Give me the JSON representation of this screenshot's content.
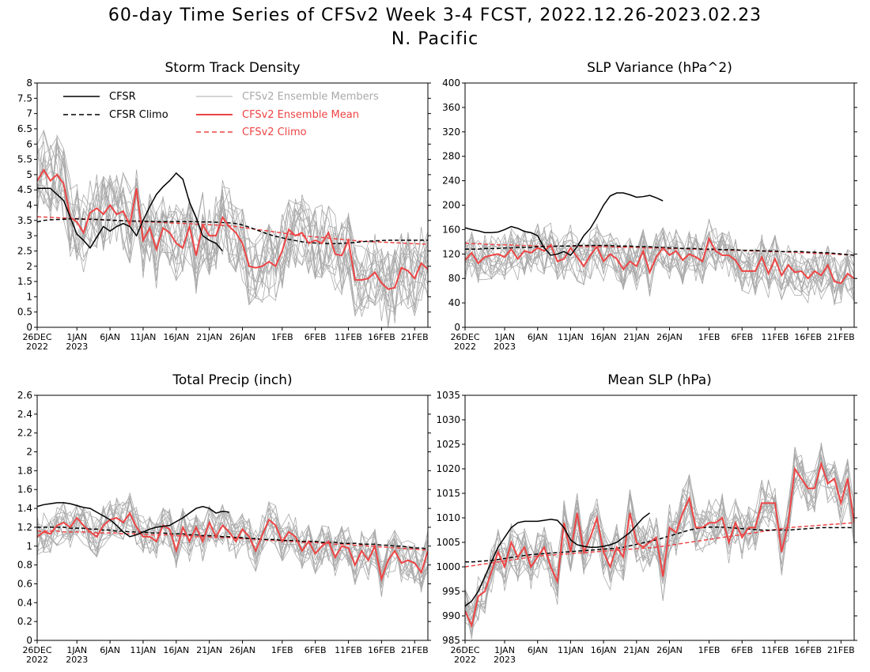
{
  "figure": {
    "title": "60-day Time Series of CFSv2 Week 3-4 FCST, 2022.12.26-2023.02.23",
    "subtitle": "N. Pacific"
  },
  "colors": {
    "cfsr": "#000000",
    "cfsr_climo": "#000000",
    "members": "#aaaaaa",
    "ensemble_mean": "#ee4444",
    "cfsv2_climo": "#ee4444"
  },
  "legend": {
    "cfsr": "CFSR",
    "cfsr_climo": "CFSR Climo",
    "members": "CFSv2 Ensemble Members",
    "ensemble_mean": "CFSv2 Ensemble Mean",
    "cfsv2_climo": "CFSv2 Climo",
    "placement": "top-left of first panel"
  },
  "x_axis": {
    "days": 60,
    "tick_labels": [
      {
        "day": 0,
        "label": "26DEC",
        "sub": "2022"
      },
      {
        "day": 6,
        "label": "1JAN",
        "sub": "2023"
      },
      {
        "day": 11,
        "label": "6JAN",
        "sub": ""
      },
      {
        "day": 16,
        "label": "11JAN",
        "sub": ""
      },
      {
        "day": 21,
        "label": "16JAN",
        "sub": ""
      },
      {
        "day": 26,
        "label": "21JAN",
        "sub": ""
      },
      {
        "day": 31,
        "label": "26JAN",
        "sub": ""
      },
      {
        "day": 37,
        "label": "1FEB",
        "sub": ""
      },
      {
        "day": 42,
        "label": "6FEB",
        "sub": ""
      },
      {
        "day": 47,
        "label": "11FEB",
        "sub": ""
      },
      {
        "day": 52,
        "label": "16FEB",
        "sub": ""
      },
      {
        "day": 57,
        "label": "21FEB",
        "sub": ""
      }
    ]
  },
  "chart_data": [
    {
      "type": "line",
      "title": "Storm Track Density",
      "ylim": [
        0,
        8
      ],
      "yticks": [
        "0",
        "0.5",
        "1",
        "1.5",
        "2",
        "2.5",
        "3",
        "3.5",
        "4",
        "4.5",
        "5",
        "5.5",
        "6",
        "6.5",
        "7",
        "7.5",
        "8"
      ],
      "yticks_values": [
        0,
        0.5,
        1,
        1.5,
        2,
        2.5,
        3,
        3.5,
        4,
        4.5,
        5,
        5.5,
        6,
        6.5,
        7,
        7.5,
        8
      ],
      "cfsr": [
        4.55,
        4.55,
        4.55,
        4.35,
        4.15,
        3.6,
        3.05,
        2.85,
        2.6,
        2.95,
        3.3,
        3.15,
        3.3,
        3.4,
        3.3,
        3.0,
        3.5,
        3.95,
        4.35,
        4.6,
        4.8,
        5.05,
        4.85,
        4.1,
        3.6,
        3.0,
        2.85,
        2.75,
        2.5
      ],
      "cfsr_climo": [
        3.45,
        3.5,
        3.52,
        3.53,
        3.54,
        3.55,
        3.55,
        3.54,
        3.54,
        3.53,
        3.52,
        3.51,
        3.5,
        3.49,
        3.48,
        3.48,
        3.47,
        3.47,
        3.46,
        3.46,
        3.46,
        3.46,
        3.46,
        3.46,
        3.46,
        3.45,
        3.45,
        3.44,
        3.43,
        3.42,
        3.4,
        3.35,
        3.28,
        3.2,
        3.12,
        3.04,
        2.98,
        2.93,
        2.88,
        2.84,
        2.8,
        2.78,
        2.76,
        2.75,
        2.74,
        2.74,
        2.75,
        2.76,
        2.78,
        2.8,
        2.82,
        2.83,
        2.84,
        2.85,
        2.85,
        2.85,
        2.85,
        2.85,
        2.85,
        2.85
      ],
      "ensemble_mean": [
        4.8,
        5.15,
        4.8,
        5.0,
        4.7,
        3.6,
        3.45,
        3.1,
        3.75,
        3.9,
        3.7,
        4.0,
        3.7,
        3.8,
        3.35,
        4.55,
        2.85,
        3.25,
        2.55,
        3.25,
        3.1,
        2.75,
        2.6,
        3.3,
        2.35,
        3.35,
        3.0,
        3.0,
        3.6,
        3.3,
        3.1,
        2.75,
        2.0,
        1.95,
        2.0,
        2.15,
        2.0,
        2.5,
        3.2,
        3.0,
        3.1,
        2.75,
        2.85,
        2.75,
        3.1,
        2.4,
        2.35,
        2.85,
        1.55,
        1.55,
        1.6,
        1.8,
        1.45,
        1.25,
        1.3,
        1.95,
        1.85,
        1.6,
        2.1,
        1.9
      ],
      "cfsv2_climo": [
        3.62,
        3.61,
        3.6,
        3.59,
        3.58,
        3.57,
        3.56,
        3.55,
        3.54,
        3.53,
        3.52,
        3.51,
        3.5,
        3.49,
        3.48,
        3.47,
        3.46,
        3.45,
        3.44,
        3.43,
        3.42,
        3.41,
        3.4,
        3.39,
        3.38,
        3.37,
        3.36,
        3.35,
        3.34,
        3.33,
        3.3,
        3.27,
        3.24,
        3.21,
        3.18,
        3.15,
        3.12,
        3.09,
        3.06,
        3.03,
        3.0,
        2.98,
        2.96,
        2.94,
        2.92,
        2.9,
        2.88,
        2.86,
        2.84,
        2.82,
        2.81,
        2.8,
        2.79,
        2.78,
        2.77,
        2.76,
        2.75,
        2.74,
        2.73,
        2.72
      ],
      "members_spread": 1.3,
      "show_legend": true
    },
    {
      "type": "line",
      "title": "SLP Variance (hPa^2)",
      "ylim": [
        0,
        400
      ],
      "yticks": [
        "0",
        "40",
        "80",
        "120",
        "160",
        "200",
        "240",
        "280",
        "320",
        "360",
        "400"
      ],
      "yticks_values": [
        0,
        40,
        80,
        120,
        160,
        200,
        240,
        280,
        320,
        360,
        400
      ],
      "cfsr": [
        163,
        160,
        158,
        155,
        155,
        156,
        160,
        165,
        162,
        157,
        155,
        150,
        130,
        118,
        120,
        124,
        118,
        132,
        150,
        162,
        180,
        200,
        215,
        220,
        220,
        217,
        213,
        214,
        216,
        212,
        207
      ],
      "cfsr_climo": [
        128,
        128,
        128,
        129,
        129,
        129,
        130,
        130,
        131,
        131,
        131,
        132,
        132,
        132,
        133,
        133,
        133,
        134,
        134,
        134,
        134,
        134,
        134,
        133,
        133,
        133,
        132,
        132,
        132,
        131,
        131,
        130,
        130,
        129,
        129,
        129,
        128,
        128,
        128,
        127,
        127,
        127,
        126,
        126,
        126,
        125,
        125,
        125,
        124,
        124,
        124,
        124,
        123,
        123,
        122,
        122,
        121,
        120,
        119,
        118
      ],
      "ensemble_mean": [
        110,
        122,
        105,
        115,
        118,
        120,
        115,
        128,
        112,
        125,
        122,
        130,
        125,
        135,
        108,
        112,
        130,
        115,
        100,
        118,
        132,
        108,
        120,
        112,
        95,
        108,
        100,
        125,
        90,
        115,
        130,
        118,
        125,
        110,
        120,
        115,
        108,
        145,
        125,
        118,
        118,
        110,
        92,
        92,
        92,
        115,
        88,
        112,
        85,
        102,
        90,
        92,
        80,
        92,
        85,
        102,
        75,
        72,
        88,
        80
      ],
      "cfsv2_climo": [
        138,
        137,
        137,
        136,
        136,
        135,
        135,
        135,
        134,
        134,
        134,
        133,
        133,
        133,
        133,
        133,
        133,
        133,
        132,
        132,
        132,
        132,
        132,
        131,
        131,
        131,
        131,
        130,
        130,
        130,
        130,
        129,
        129,
        129,
        128,
        128,
        128,
        127,
        127,
        127,
        126,
        126,
        126,
        125,
        125,
        125,
        124,
        124,
        124,
        123,
        123,
        122,
        122,
        121,
        121,
        120,
        120,
        119,
        119,
        118
      ],
      "members_spread": 40,
      "show_legend": false
    },
    {
      "type": "line",
      "title": "Total Precip (inch)",
      "ylim": [
        0,
        2.6
      ],
      "yticks": [
        "0",
        "0.2",
        "0.4",
        "0.6",
        "0.8",
        "1",
        "1.2",
        "1.4",
        "1.6",
        "1.8",
        "2",
        "2.2",
        "2.4",
        "2.6"
      ],
      "yticks_values": [
        0,
        0.2,
        0.4,
        0.6,
        0.8,
        1,
        1.2,
        1.4,
        1.6,
        1.8,
        2,
        2.2,
        2.4,
        2.6
      ],
      "cfsr": [
        1.42,
        1.44,
        1.45,
        1.46,
        1.46,
        1.45,
        1.43,
        1.41,
        1.4,
        1.36,
        1.32,
        1.28,
        1.22,
        1.15,
        1.1,
        1.12,
        1.15,
        1.18,
        1.2,
        1.21,
        1.22,
        1.26,
        1.3,
        1.35,
        1.4,
        1.42,
        1.4,
        1.35,
        1.37,
        1.36
      ],
      "cfsr_climo": [
        1.2,
        1.2,
        1.2,
        1.2,
        1.2,
        1.19,
        1.19,
        1.19,
        1.18,
        1.18,
        1.17,
        1.17,
        1.16,
        1.16,
        1.15,
        1.15,
        1.15,
        1.14,
        1.14,
        1.14,
        1.13,
        1.13,
        1.13,
        1.12,
        1.12,
        1.11,
        1.11,
        1.11,
        1.1,
        1.1,
        1.09,
        1.09,
        1.08,
        1.08,
        1.07,
        1.07,
        1.07,
        1.06,
        1.06,
        1.06,
        1.05,
        1.05,
        1.05,
        1.04,
        1.04,
        1.04,
        1.03,
        1.03,
        1.03,
        1.02,
        1.02,
        1.02,
        1.01,
        1.01,
        1.0,
        1.0,
        0.99,
        0.98,
        0.98,
        0.97
      ],
      "ensemble_mean": [
        1.1,
        1.15,
        1.13,
        1.22,
        1.25,
        1.2,
        1.3,
        1.22,
        1.15,
        1.1,
        1.22,
        1.28,
        1.3,
        1.25,
        1.35,
        1.2,
        1.1,
        1.1,
        1.05,
        1.22,
        1.18,
        0.95,
        1.2,
        1.05,
        1.2,
        1.05,
        1.25,
        1.1,
        1.22,
        1.15,
        1.05,
        1.18,
        1.1,
        0.95,
        1.12,
        1.28,
        1.22,
        1.05,
        1.15,
        1.1,
        0.95,
        1.05,
        0.92,
        1.0,
        1.05,
        0.88,
        1.0,
        0.98,
        0.8,
        0.95,
        0.85,
        1.0,
        0.65,
        0.85,
        0.95,
        0.82,
        0.85,
        0.82,
        0.72,
        0.95
      ],
      "cfsv2_climo": [
        1.16,
        1.16,
        1.16,
        1.16,
        1.15,
        1.15,
        1.15,
        1.15,
        1.15,
        1.14,
        1.14,
        1.14,
        1.14,
        1.13,
        1.13,
        1.13,
        1.13,
        1.12,
        1.12,
        1.12,
        1.12,
        1.11,
        1.11,
        1.11,
        1.1,
        1.1,
        1.1,
        1.09,
        1.09,
        1.09,
        1.08,
        1.08,
        1.08,
        1.07,
        1.07,
        1.06,
        1.06,
        1.06,
        1.05,
        1.05,
        1.04,
        1.04,
        1.04,
        1.03,
        1.03,
        1.02,
        1.02,
        1.02,
        1.01,
        1.01,
        1.0,
        1.0,
        0.99,
        0.99,
        0.98,
        0.98,
        0.97,
        0.97,
        0.96,
        0.96
      ],
      "members_spread": 0.22,
      "show_legend": false
    },
    {
      "type": "line",
      "title": "Mean SLP (hPa)",
      "ylim": [
        985,
        1035
      ],
      "yticks": [
        "985",
        "990",
        "995",
        "1000",
        "1005",
        "1010",
        "1015",
        "1020",
        "1025",
        "1030",
        "1035"
      ],
      "yticks_values": [
        985,
        990,
        995,
        1000,
        1005,
        1010,
        1015,
        1020,
        1025,
        1030,
        1035
      ],
      "cfsr": [
        992,
        993,
        995,
        998,
        1001,
        1004,
        1006,
        1008,
        1009,
        1009.3,
        1009.3,
        1009.3,
        1009.5,
        1009.7,
        1009.5,
        1008,
        1005.5,
        1004.5,
        1004.2,
        1004,
        1004,
        1004.2,
        1004.5,
        1005,
        1006,
        1007,
        1008.5,
        1010,
        1011
      ],
      "cfsr_climo": [
        1001,
        1001,
        1001.1,
        1001.2,
        1001.3,
        1001.5,
        1001.7,
        1001.9,
        1002.1,
        1002.3,
        1002.5,
        1002.6,
        1002.7,
        1002.8,
        1002.9,
        1003,
        1003.1,
        1003.2,
        1003.3,
        1003.4,
        1003.5,
        1003.6,
        1003.7,
        1003.8,
        1004,
        1004.3,
        1004.6,
        1004.9,
        1005.2,
        1005.5,
        1005.9,
        1006.3,
        1006.7,
        1007.1,
        1007.5,
        1007.8,
        1008,
        1008.1,
        1008.1,
        1008.1,
        1008,
        1007.9,
        1007.8,
        1007.7,
        1007.6,
        1007.5,
        1007.5,
        1007.5,
        1007.5,
        1007.5,
        1007.6,
        1007.7,
        1007.8,
        1007.9,
        1008,
        1008,
        1008,
        1008,
        1008,
        1008
      ],
      "ensemble_mean": [
        991,
        988,
        994,
        995,
        999,
        1003,
        1000,
        1005,
        1002,
        1004,
        1000,
        1002,
        1004,
        1000,
        997,
        1009,
        1003,
        1011,
        1003,
        1006,
        1010,
        1003,
        1000,
        1004,
        1002,
        1011,
        1005,
        1004,
        1005,
        1006,
        998,
        1008,
        1007,
        1011,
        1014,
        1008,
        1008,
        1009,
        1009,
        1010,
        1005,
        1009,
        1006,
        1008,
        1008,
        1013,
        1013,
        1013,
        1003,
        1009,
        1020,
        1018,
        1016,
        1016,
        1021,
        1017,
        1018,
        1013,
        1018,
        1009
      ],
      "cfsv2_climo": [
        1000,
        1000.2,
        1000.4,
        1000.6,
        1000.8,
        1001,
        1001.2,
        1001.4,
        1001.6,
        1001.8,
        1002,
        1002.2,
        1002.3,
        1002.4,
        1002.5,
        1002.6,
        1002.7,
        1002.8,
        1002.9,
        1003,
        1003.1,
        1003.2,
        1003.3,
        1003.4,
        1003.5,
        1003.6,
        1003.7,
        1003.8,
        1003.9,
        1004,
        1004.2,
        1004.4,
        1004.6,
        1004.8,
        1005,
        1005.2,
        1005.4,
        1005.6,
        1005.8,
        1006,
        1006.2,
        1006.4,
        1006.6,
        1006.8,
        1007,
        1007.2,
        1007.4,
        1007.6,
        1007.8,
        1008,
        1008.1,
        1008.2,
        1008.3,
        1008.4,
        1008.5,
        1008.6,
        1008.7,
        1008.8,
        1008.9,
        1009
      ],
      "members_spread": 5,
      "show_legend": false
    }
  ]
}
